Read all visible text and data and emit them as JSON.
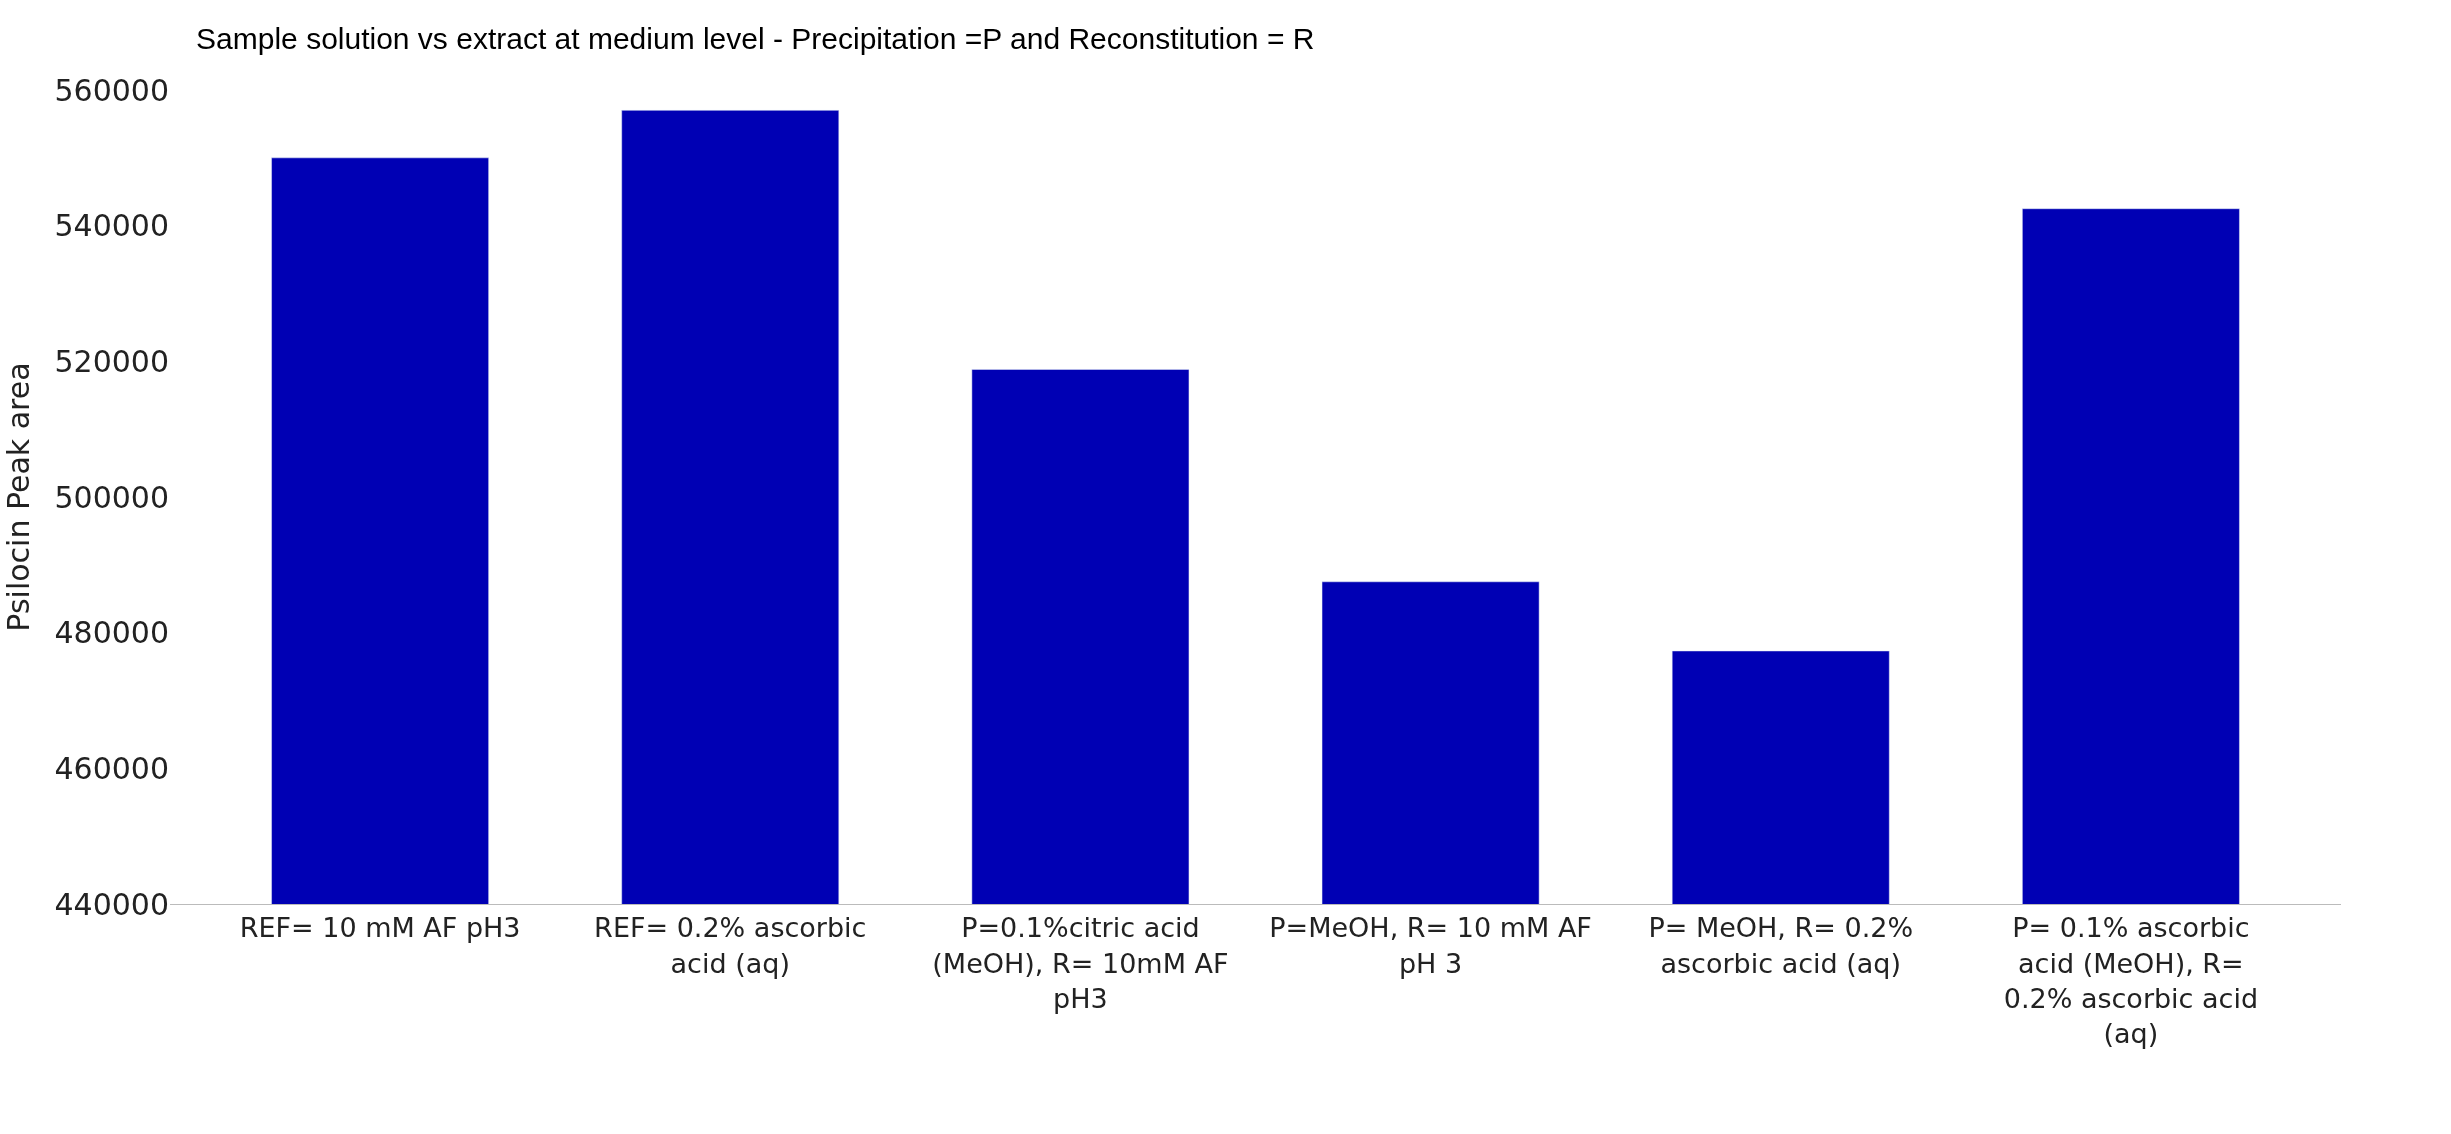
{
  "chart_data": {
    "type": "bar",
    "title": "Sample solution vs extract at medium level - Precipitation =P and Reconstitution = R",
    "ylabel": "Psilocin Peak area",
    "categories": [
      "REF= 10 mM AF pH3",
      "REF= 0.2% ascorbic acid (aq)",
      "P=0.1%citric acid (MeOH), R= 10mM AF pH3",
      "P=MeOH, R= 10 mM AF pH 3",
      "P= MeOH, R= 0.2% ascorbic acid (aq)",
      "P= 0.1% ascorbic acid (MeOH), R= 0.2% ascorbic acid (aq)"
    ],
    "values": [
      550000,
      557000,
      518800,
      487500,
      477300,
      542500
    ],
    "color": "#0000b4",
    "ylim": [
      440000,
      560000
    ],
    "yticks": [
      440000,
      460000,
      480000,
      500000,
      520000,
      540000,
      560000
    ],
    "legend": false
  }
}
